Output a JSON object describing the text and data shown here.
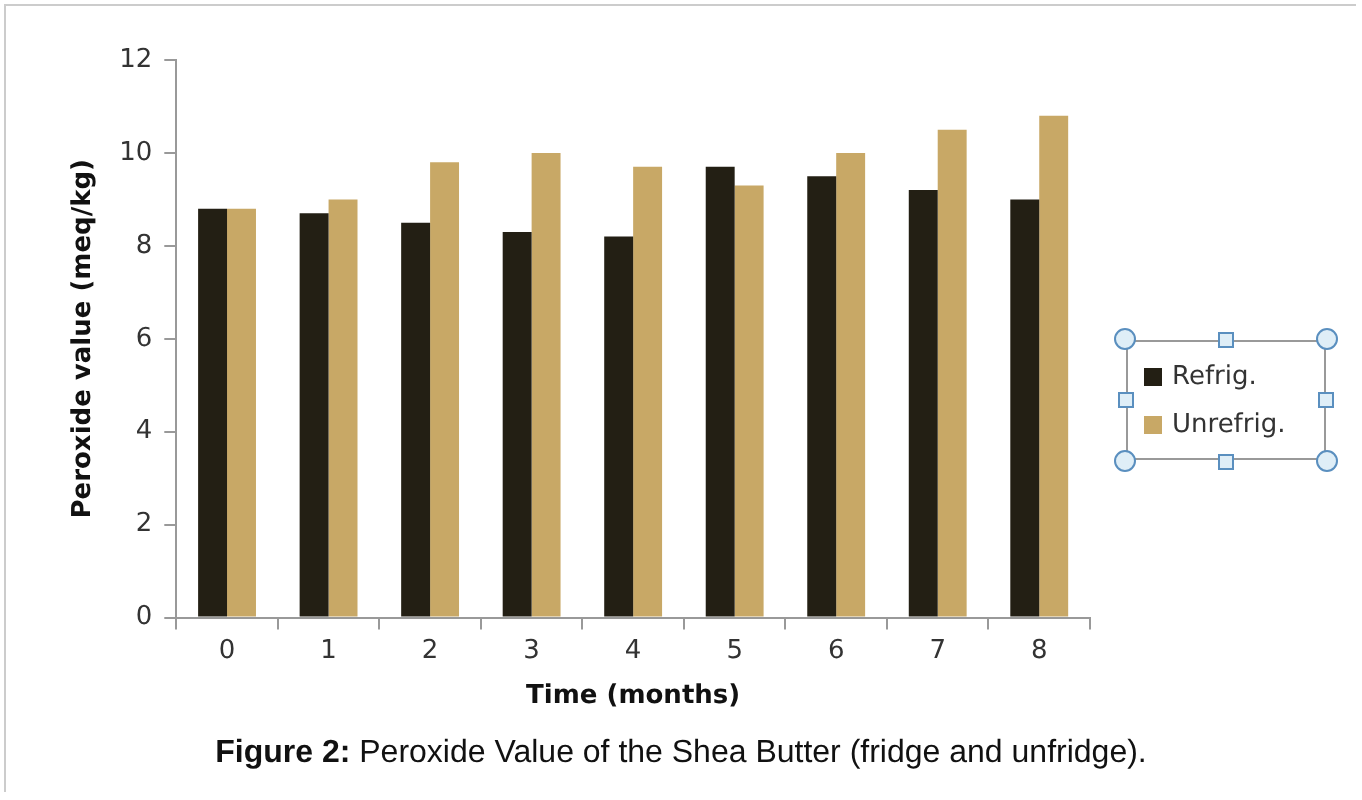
{
  "chart_data": {
    "type": "bar",
    "xlabel": "Time (months)",
    "ylabel": "Peroxide value (meq/kg)",
    "categories": [
      "0",
      "1",
      "2",
      "3",
      "4",
      "5",
      "6",
      "7",
      "8"
    ],
    "series": [
      {
        "name": "Refrig.",
        "color": "#231f14",
        "values": [
          8.8,
          8.7,
          8.5,
          8.3,
          8.2,
          9.7,
          9.5,
          9.2,
          9.0
        ]
      },
      {
        "name": "Unrefrig.",
        "color": "#c8a866",
        "values": [
          8.8,
          9.0,
          9.8,
          10.0,
          9.7,
          9.3,
          10.0,
          10.5,
          10.8
        ]
      }
    ],
    "ylim": [
      0,
      12
    ],
    "yticks": [
      0,
      2,
      4,
      6,
      8,
      10,
      12
    ],
    "legend": "right",
    "annotations": [
      "Figure 2: Peroxide Value of the Shea Butter (fridge and unfridge)."
    ]
  }
}
